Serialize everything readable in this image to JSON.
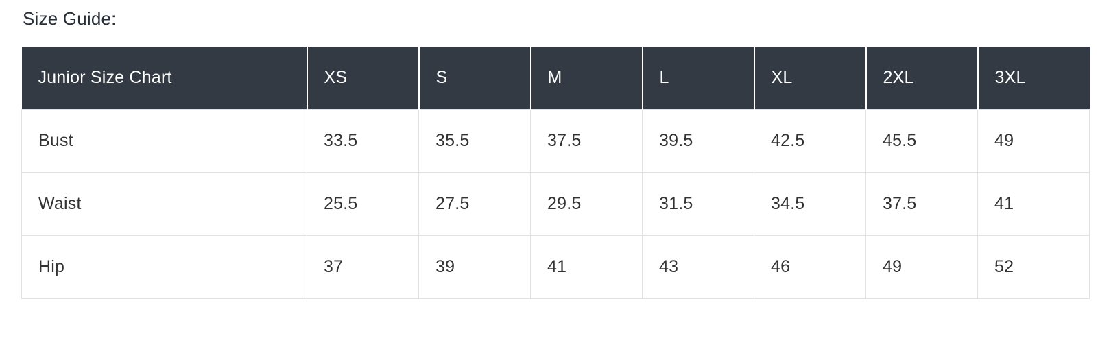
{
  "page": {
    "title": "Size Guide:"
  },
  "size_chart": {
    "name": "Junior Size Chart",
    "columns": [
      "Junior Size Chart",
      "XS",
      "S",
      "M",
      "L",
      "XL",
      "2XL",
      "3XL"
    ],
    "rows": [
      {
        "label": "Bust",
        "values": [
          "33.5",
          "35.5",
          "37.5",
          "39.5",
          "42.5",
          "45.5",
          "49"
        ]
      },
      {
        "label": "Waist",
        "values": [
          "25.5",
          "27.5",
          "29.5",
          "31.5",
          "34.5",
          "37.5",
          "41"
        ]
      },
      {
        "label": "Hip",
        "values": [
          "37",
          "39",
          "41",
          "43",
          "46",
          "49",
          "52"
        ]
      }
    ]
  },
  "colors": {
    "header_bg": "#343a44",
    "header_text": "#ffffff",
    "body_text": "#333333",
    "title_text": "#252e39",
    "border": "#e0e2e5",
    "page_bg": "#ffffff"
  }
}
